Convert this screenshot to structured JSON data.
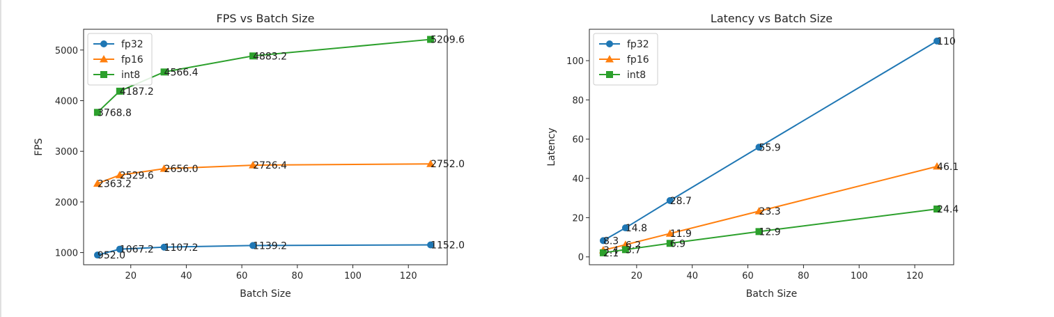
{
  "chart_data": [
    {
      "type": "line",
      "title": "FPS vs Batch Size",
      "xlabel": "Batch Size",
      "ylabel": "FPS",
      "xlim": [
        3,
        134
      ],
      "ylim": [
        760,
        5410
      ],
      "xticks": [
        20,
        40,
        60,
        80,
        100,
        120
      ],
      "yticks": [
        1000,
        2000,
        3000,
        4000,
        5000
      ],
      "legend_position": "upper-left",
      "x": [
        8,
        16,
        32,
        64,
        128
      ],
      "series": [
        {
          "name": "fp32",
          "color": "#1f77b4",
          "marker": "circle",
          "values": [
            952.0,
            1067.2,
            1107.2,
            1139.2,
            1152.0
          ],
          "labels": [
            "952.0",
            "1067.2",
            "1107.2",
            "1139.2",
            "1152.0"
          ]
        },
        {
          "name": "fp16",
          "color": "#ff7f0e",
          "marker": "triangle",
          "values": [
            2363.2,
            2529.6,
            2656.0,
            2726.4,
            2752.0
          ],
          "labels": [
            "2363.2",
            "2529.6",
            "2656.0",
            "2726.4",
            "2752.0"
          ]
        },
        {
          "name": "int8",
          "color": "#2ca02c",
          "marker": "square",
          "values": [
            3768.8,
            4187.2,
            4566.4,
            4883.2,
            5209.6
          ],
          "labels": [
            "3768.8",
            "4187.2",
            "4566.4",
            "4883.2",
            "5209.6"
          ]
        }
      ]
    },
    {
      "type": "line",
      "title": "Latency vs Batch Size",
      "xlabel": "Batch Size",
      "ylabel": "Latency",
      "xlim": [
        3,
        134
      ],
      "ylim": [
        -4,
        116
      ],
      "xticks": [
        20,
        40,
        60,
        80,
        100,
        120
      ],
      "yticks": [
        0,
        20,
        40,
        60,
        80,
        100
      ],
      "legend_position": "upper-left",
      "x": [
        8,
        16,
        32,
        64,
        128
      ],
      "series": [
        {
          "name": "fp32",
          "color": "#1f77b4",
          "marker": "circle",
          "values": [
            8.3,
            14.8,
            28.7,
            55.9,
            110
          ],
          "labels": [
            "8.3",
            "14.8",
            "28.7",
            "55.9",
            "110"
          ]
        },
        {
          "name": "fp16",
          "color": "#ff7f0e",
          "marker": "triangle",
          "values": [
            3.4,
            6.2,
            11.9,
            23.3,
            46.1
          ],
          "labels": [
            "3.4",
            "6.2",
            "11.9",
            "23.3",
            "46.1"
          ]
        },
        {
          "name": "int8",
          "color": "#2ca02c",
          "marker": "square",
          "values": [
            2.1,
            3.7,
            6.9,
            12.9,
            24.4
          ],
          "labels": [
            "2.1",
            "3.7",
            "6.9",
            "12.9",
            "24.4"
          ]
        }
      ]
    }
  ]
}
